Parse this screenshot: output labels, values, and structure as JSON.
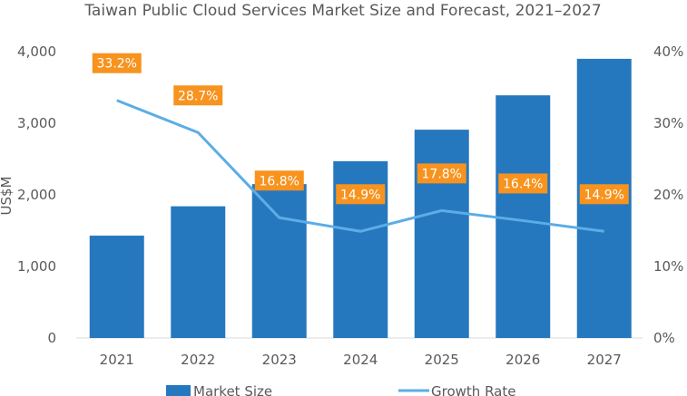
{
  "chart_data": {
    "type": "bar",
    "title": "Taiwan Public Cloud Services Market Size and Forecast, 2021–2027",
    "categories": [
      "2021",
      "2022",
      "2023",
      "2024",
      "2025",
      "2026",
      "2027"
    ],
    "ylabel": "US$M",
    "ylim": [
      0,
      4000
    ],
    "y_ticks": [
      "0",
      "1,000",
      "2,000",
      "3,000",
      "4,000"
    ],
    "y2lim": [
      0,
      40
    ],
    "y2_ticks": [
      "0%",
      "10%",
      "20%",
      "30%",
      "40%"
    ],
    "grid": false,
    "legend_position": "bottom",
    "series": [
      {
        "name": "Market Size",
        "type": "bar",
        "axis": "left",
        "color": "#2678BE",
        "values": [
          1430,
          1840,
          2150,
          2470,
          2910,
          3390,
          3900
        ]
      },
      {
        "name": "Growth Rate",
        "type": "line",
        "axis": "right",
        "color": "#5BADE5",
        "values": [
          33.2,
          28.7,
          16.8,
          14.9,
          17.8,
          16.4,
          14.9
        ],
        "labels": [
          "33.2%",
          "28.7%",
          "16.8%",
          "14.9%",
          "17.8%",
          "16.4%",
          "14.9%"
        ],
        "label_color": "#F7931E"
      }
    ]
  }
}
